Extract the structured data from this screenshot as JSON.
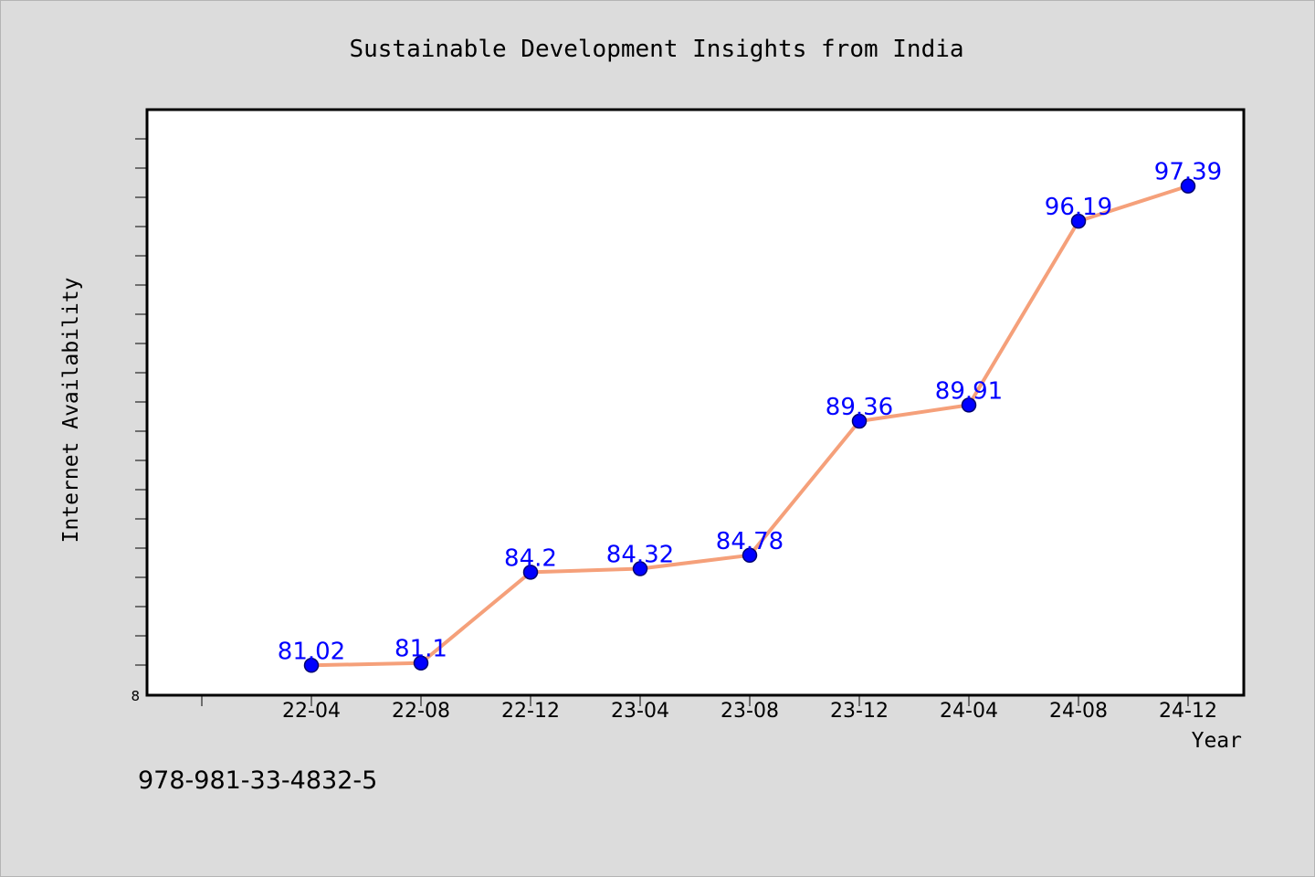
{
  "chart_data": {
    "type": "line",
    "title": "Sustainable Development Insights from India",
    "xlabel": "Year",
    "ylabel": "Internet Availability",
    "categories": [
      "22-04",
      "22-08",
      "22-12",
      "23-04",
      "23-08",
      "23-12",
      "24-04",
      "24-08",
      "24-12"
    ],
    "series": [
      {
        "values": [
          81.02,
          81.1,
          84.2,
          84.32,
          84.78,
          89.36,
          89.91,
          96.19,
          97.39
        ]
      }
    ],
    "data_labels": [
      "81.02",
      "81.1",
      "84.2",
      "84.32",
      "84.78",
      "89.36",
      "89.91",
      "96.19",
      "97.39"
    ],
    "ylim": [
      80.0,
      100.0
    ],
    "y_tick_label": "8",
    "grid": false,
    "legend": "none",
    "colors": {
      "line": "#f5a07a",
      "marker": "#0000ff",
      "marker_edge": "#00006e",
      "data_label": "#0000ff",
      "plot_background": "#ffffff",
      "page_background": "#dcdcdc"
    }
  },
  "footer": {
    "isbn": "978-981-33-4832-5"
  }
}
